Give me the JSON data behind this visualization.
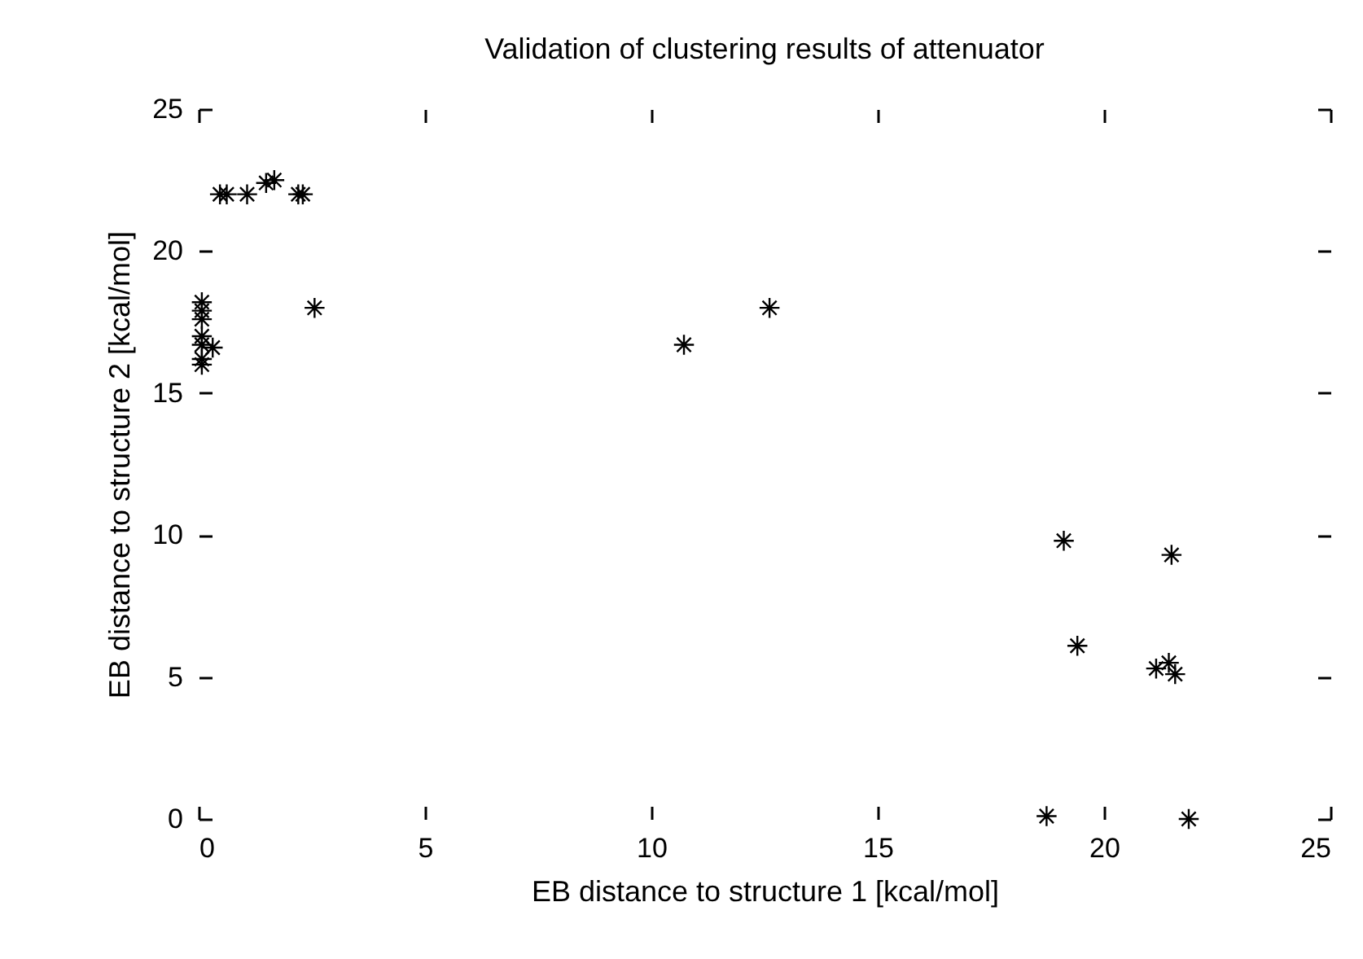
{
  "chart_data": {
    "type": "scatter",
    "title": "Validation of clustering results of attenuator",
    "xlabel": "EB distance to structure 1 [kcal/mol]",
    "ylabel": "EB distance to structure 2 [kcal/mol]",
    "xlim": [
      0,
      25
    ],
    "ylim": [
      0,
      25
    ],
    "xticks": [
      0,
      5,
      10,
      15,
      20,
      25
    ],
    "yticks": [
      0,
      5,
      10,
      15,
      20,
      25
    ],
    "marker": "cross",
    "grid": false,
    "legend": false,
    "series": [
      {
        "color": "#000000",
        "x": [
          0.47,
          0.62,
          1.07,
          1.49,
          1.67,
          2.2,
          2.3,
          0.07,
          0.07,
          0.07,
          0.07,
          0.07,
          0.07,
          0.07,
          0.31,
          2.56,
          10.72,
          12.61,
          19.11,
          21.49,
          19.41,
          21.15,
          21.43,
          21.57,
          18.73,
          21.87
        ],
        "values": [
          22.0,
          22.0,
          22.0,
          22.4,
          22.5,
          22.0,
          22.0,
          18.2,
          17.9,
          17.6,
          17.0,
          16.7,
          16.2,
          16.0,
          16.6,
          18.0,
          16.7,
          18.0,
          9.8,
          9.3,
          6.1,
          5.3,
          5.5,
          5.1,
          0.1,
          0.0
        ]
      }
    ]
  }
}
